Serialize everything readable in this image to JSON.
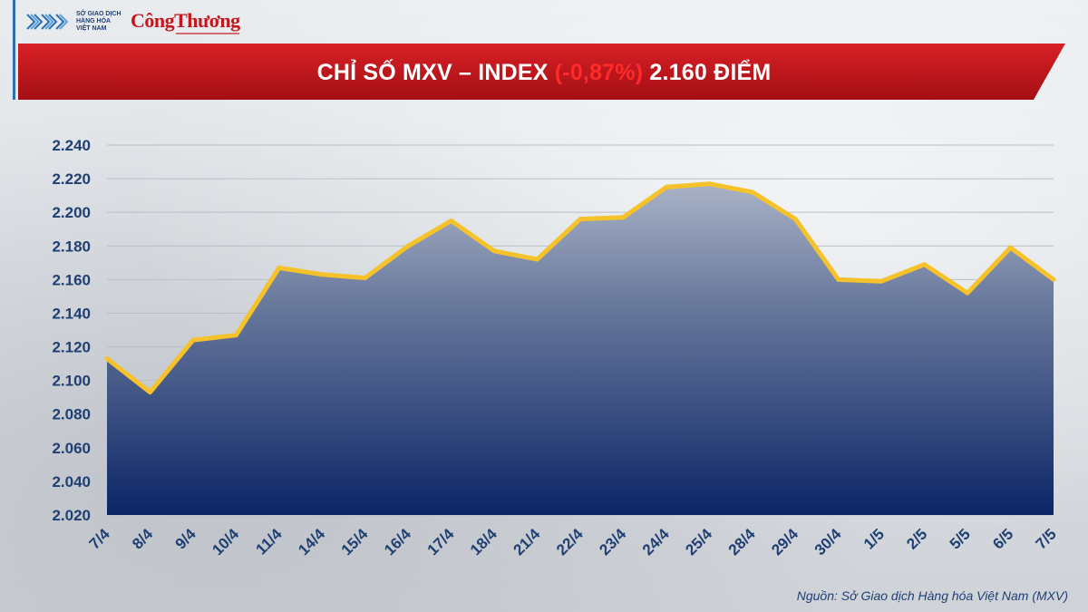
{
  "header": {
    "mxv_logo_text": "SỞ GIAO DỊCH\nHÀNG HÓA\nVIỆT NAM",
    "brand_logo_text": "CôngThương"
  },
  "title": {
    "prefix": "CHỈ SỐ MXV – INDEX ",
    "change": "(-0,87%)",
    "suffix": " 2.160 ĐIỂM"
  },
  "source": "Nguồn: Sở Giao dịch Hàng hóa Việt Nam (MXV)",
  "colors": {
    "banner_red": "#c4161c",
    "line_yellow": "#f5c22a",
    "area_top": "#a9b2c6",
    "area_bottom": "#0c2566",
    "negative_red": "#ff2a2a",
    "tick_label": "#1f3f73"
  },
  "chart_data": {
    "type": "area",
    "title": "CHỈ SỐ MXV – INDEX (-0,87%) 2.160 ĐIỂM",
    "categories": [
      "7/4",
      "8/4",
      "9/4",
      "10/4",
      "11/4",
      "14/4",
      "15/4",
      "16/4",
      "17/4",
      "18/4",
      "21/4",
      "22/4",
      "23/4",
      "24/4",
      "25/4",
      "28/4",
      "29/4",
      "30/4",
      "1/5",
      "2/5",
      "5/5",
      "6/5",
      "7/5"
    ],
    "series": [
      {
        "values": [
          2113,
          2093,
          2124,
          2127,
          2167,
          2163,
          2161,
          2180,
          2195,
          2177,
          2172,
          2196,
          2197,
          2215,
          2217,
          2212,
          2196,
          2160,
          2159,
          2169,
          2152,
          2179,
          2160
        ]
      }
    ],
    "ylim": [
      2020,
      2240
    ],
    "yticks": [
      2020,
      2040,
      2060,
      2080,
      2100,
      2120,
      2140,
      2160,
      2180,
      2200,
      2220,
      2240
    ],
    "ytick_labels": [
      "2.020",
      "2.040",
      "2.060",
      "2.080",
      "2.100",
      "2.120",
      "2.140",
      "2.160",
      "2.180",
      "2.200",
      "2.220",
      "2.240"
    ],
    "grid": true,
    "legend": "none"
  }
}
